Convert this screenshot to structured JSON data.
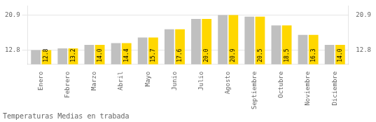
{
  "chart_data": {
    "type": "bar",
    "title": "Temperaturas Medias en trabada",
    "categories": [
      "Enero",
      "Febrero",
      "Marzo",
      "Abril",
      "Mayo",
      "Junio",
      "Julio",
      "Agosto",
      "Septiembre",
      "Octubre",
      "Noviembre",
      "Diciembre"
    ],
    "series": [
      {
        "color": "#C0C0C0",
        "values": [
          12.8,
          13.2,
          14.0,
          14.4,
          15.7,
          17.6,
          20.0,
          20.9,
          20.5,
          18.5,
          16.3,
          14.0
        ]
      },
      {
        "color": "#FFD700",
        "values": [
          12.8,
          13.2,
          14.0,
          14.4,
          15.7,
          17.6,
          20.0,
          20.9,
          20.5,
          18.5,
          16.3,
          14.0
        ],
        "data_labels": true,
        "value_labels": [
          "12.8",
          "13.2",
          "14.0",
          "14.4",
          "15.7",
          "17.6",
          "20.0",
          "20.9",
          "20.5",
          "18.5",
          "16.3",
          "14.0"
        ]
      }
    ],
    "ylim": [
      9.5,
      23.0
    ],
    "yticks": [
      12.8,
      20.9
    ],
    "y2lim": [
      9.5,
      23.0
    ],
    "y2ticks": [
      12.8,
      20.9
    ],
    "grid": true
  }
}
